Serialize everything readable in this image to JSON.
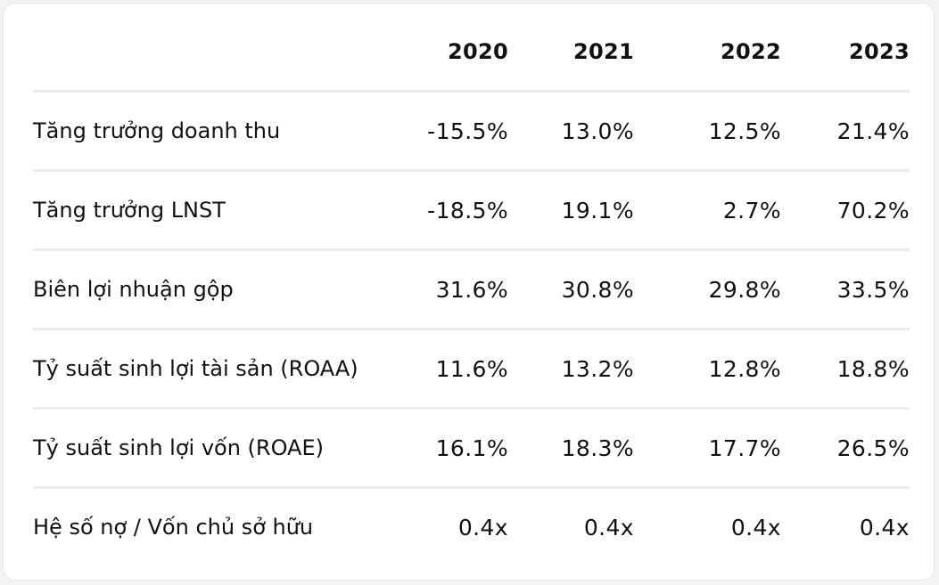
{
  "table": {
    "headers": [
      "",
      "2020",
      "2021",
      "2022",
      "2023"
    ],
    "rows": [
      {
        "label": "Tăng trưởng doanh thu",
        "values": [
          "-15.5%",
          "13.0%",
          "12.5%",
          "21.4%"
        ]
      },
      {
        "label": "Tăng trưởng LNST",
        "values": [
          "-18.5%",
          "19.1%",
          "2.7%",
          "70.2%"
        ]
      },
      {
        "label": "Biên lợi nhuận gộp",
        "values": [
          "31.6%",
          "30.8%",
          "29.8%",
          "33.5%"
        ]
      },
      {
        "label": "Tỷ suất sinh lợi tài sản (ROAA)",
        "values": [
          "11.6%",
          "13.2%",
          "12.8%",
          "18.8%"
        ]
      },
      {
        "label": "Tỷ suất sinh lợi vốn (ROAE)",
        "values": [
          "16.1%",
          "18.3%",
          "17.7%",
          "26.5%"
        ]
      },
      {
        "label": "Hệ số nợ / Vốn chủ sở hữu",
        "values": [
          "0.4x",
          "0.4x",
          "0.4x",
          "0.4x"
        ]
      }
    ]
  }
}
